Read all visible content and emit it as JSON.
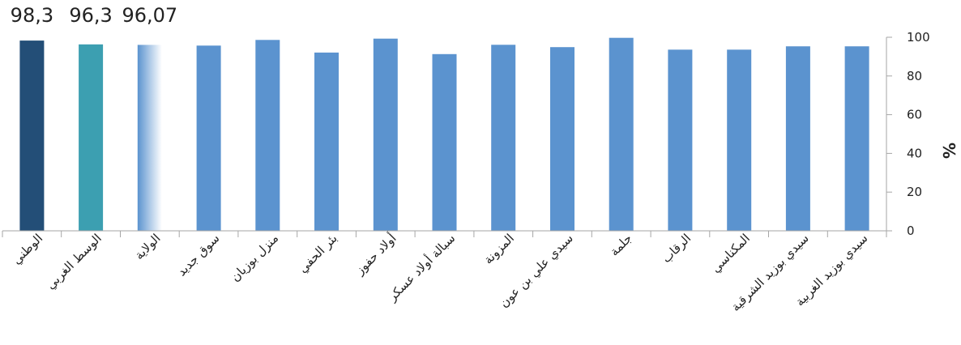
{
  "chart_data": {
    "type": "bar",
    "categories": [
      "الوطني",
      "الوسط الغربي",
      "الولاية",
      "سوق جديد",
      "منزل بوزيان",
      "بئر الحفي",
      "أولاد حفوز",
      "سبالة أولاد عسكر",
      "المزونة",
      "سيدي علي بن عون",
      "جلمة",
      "الرقاب",
      "المكناسي",
      "سيدي بوزيد الشرقية",
      "سيدي بوزيد الغربية"
    ],
    "values": [
      98.3,
      96.3,
      96.07,
      95.7,
      98.6,
      92.1,
      99.3,
      91.3,
      96.1,
      94.9,
      99.7,
      93.6,
      93.6,
      95.3,
      95.3
    ],
    "data_labels": [
      "98,3",
      "96,3",
      "96,07",
      "",
      "",
      "",
      "",
      "",
      "",
      "",
      "",
      "",
      "",
      "",
      ""
    ],
    "ylabel": "%",
    "ylim": [
      0,
      100
    ],
    "yticks": [
      "0",
      "20",
      "40",
      "60",
      "80",
      "100"
    ],
    "y_axis_side": "right",
    "grid": false,
    "legend": "none",
    "colors": {
      "national": "#234e77",
      "region": "#3c9fb1",
      "governorate_gradient": [
        "#5b93cf",
        "#ffffff"
      ],
      "delegation": "#5b93cf",
      "axis": "#a6a6a6"
    }
  }
}
